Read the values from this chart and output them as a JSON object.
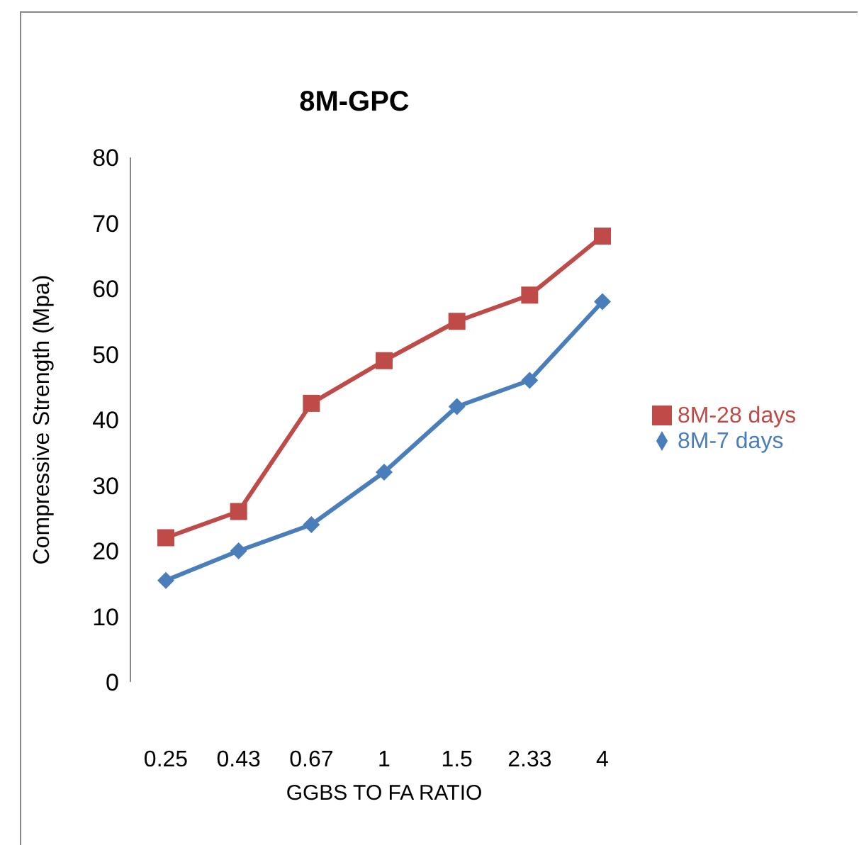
{
  "chart_data": {
    "type": "line",
    "title": "8M-GPC",
    "xlabel": "GGBS TO FA RATIO",
    "ylabel": "Compressive Strength (Mpa)",
    "categories": [
      "0.25",
      "0.43",
      "0.67",
      "1",
      "1.5",
      "2.33",
      "4"
    ],
    "series": [
      {
        "name": "8M-7 days",
        "color": "#4a7ebb",
        "marker": "diamond",
        "values": [
          15.5,
          20,
          24,
          32,
          42,
          46,
          58
        ]
      },
      {
        "name": "8M-28 days",
        "color": "#be4b48",
        "marker": "square",
        "values": [
          22,
          26,
          42.5,
          49,
          55,
          59,
          68
        ]
      }
    ],
    "ylim": [
      0,
      80
    ],
    "yticks": [
      0,
      10,
      20,
      30,
      40,
      50,
      60,
      70,
      80
    ],
    "grid": false,
    "legend": "right",
    "line_style": "solid"
  }
}
